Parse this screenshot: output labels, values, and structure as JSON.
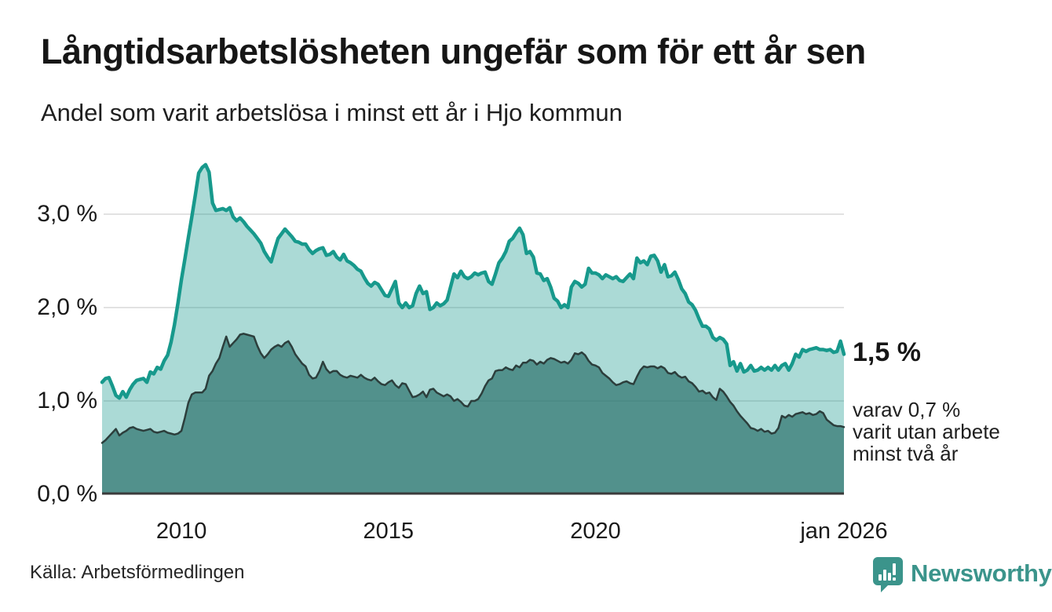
{
  "header": {
    "title": "Långtidsarbetslösheten ungefär som för ett år sen",
    "subtitle": "Andel som varit arbetslösa i minst ett år i Hjo kommun"
  },
  "chart_data": {
    "type": "area",
    "title": "Långtidsarbetslösheten ungefär som för ett år sen",
    "subtitle": "Andel som varit arbetslösa i minst ett år i Hjo kommun",
    "unit": "%",
    "frequency": "monthly",
    "x_start": "2008-02",
    "x_end": "2026-01",
    "ylim": [
      0,
      3.7
    ],
    "grid": "horizontal",
    "legend_position": "none",
    "y_gridlines": [
      1,
      2,
      3
    ],
    "y_ticks": [
      {
        "label": "0,0 %",
        "value": 0
      },
      {
        "label": "1,0 %",
        "value": 1
      },
      {
        "label": "2,0 %",
        "value": 2
      },
      {
        "label": "3,0 %",
        "value": 3
      }
    ],
    "x_ticks": [
      {
        "label": "2010",
        "month_index": 23
      },
      {
        "label": "2015",
        "month_index": 83
      },
      {
        "label": "2020",
        "month_index": 143
      },
      {
        "label": "jan 2026",
        "month_index": 215
      }
    ],
    "series": [
      {
        "name": "Arbetslösa minst ett år",
        "latest_value": 1.5,
        "color": "#17998c",
        "fill": "rgba(23,153,140,0.36)",
        "values": [
          1.2,
          1.24,
          1.25,
          1.16,
          1.06,
          1.03,
          1.1,
          1.04,
          1.12,
          1.18,
          1.22,
          1.23,
          1.24,
          1.2,
          1.31,
          1.29,
          1.36,
          1.34,
          1.43,
          1.49,
          1.63,
          1.82,
          2.05,
          2.3,
          2.52,
          2.75,
          2.97,
          3.2,
          3.44,
          3.5,
          3.53,
          3.45,
          3.12,
          3.04,
          3.05,
          3.06,
          3.04,
          3.07,
          2.97,
          2.93,
          2.96,
          2.92,
          2.87,
          2.83,
          2.79,
          2.74,
          2.69,
          2.6,
          2.54,
          2.49,
          2.62,
          2.74,
          2.79,
          2.84,
          2.8,
          2.76,
          2.71,
          2.7,
          2.68,
          2.68,
          2.62,
          2.58,
          2.61,
          2.63,
          2.64,
          2.56,
          2.57,
          2.6,
          2.54,
          2.51,
          2.57,
          2.5,
          2.48,
          2.45,
          2.41,
          2.39,
          2.32,
          2.26,
          2.23,
          2.27,
          2.25,
          2.19,
          2.13,
          2.12,
          2.2,
          2.28,
          2.05,
          2.0,
          2.05,
          2.0,
          2.02,
          2.15,
          2.23,
          2.15,
          2.17,
          1.98,
          2.0,
          2.05,
          2.02,
          2.04,
          2.08,
          2.22,
          2.36,
          2.32,
          2.39,
          2.33,
          2.31,
          2.33,
          2.37,
          2.35,
          2.37,
          2.38,
          2.28,
          2.25,
          2.36,
          2.48,
          2.53,
          2.6,
          2.71,
          2.74,
          2.8,
          2.85,
          2.78,
          2.58,
          2.6,
          2.54,
          2.37,
          2.36,
          2.29,
          2.31,
          2.22,
          2.1,
          2.07,
          2.0,
          2.03,
          2.0,
          2.22,
          2.28,
          2.26,
          2.22,
          2.25,
          2.42,
          2.37,
          2.37,
          2.35,
          2.31,
          2.35,
          2.33,
          2.31,
          2.33,
          2.29,
          2.28,
          2.32,
          2.36,
          2.31,
          2.53,
          2.48,
          2.5,
          2.46,
          2.55,
          2.56,
          2.5,
          2.38,
          2.46,
          2.33,
          2.34,
          2.38,
          2.3,
          2.2,
          2.15,
          2.06,
          2.03,
          1.97,
          1.88,
          1.8,
          1.8,
          1.77,
          1.68,
          1.65,
          1.68,
          1.66,
          1.61,
          1.38,
          1.42,
          1.32,
          1.4,
          1.31,
          1.33,
          1.38,
          1.32,
          1.33,
          1.36,
          1.33,
          1.36,
          1.33,
          1.38,
          1.33,
          1.38,
          1.4,
          1.33,
          1.4,
          1.5,
          1.47,
          1.55,
          1.53,
          1.55,
          1.56,
          1.57,
          1.55,
          1.55,
          1.54,
          1.55,
          1.52,
          1.53,
          1.64,
          1.5
        ]
      },
      {
        "name": "varav utan arbete minst två år",
        "latest_value": 0.7,
        "color": "#2c3e3c",
        "fill": "rgba(37,108,102,0.66)",
        "values": [
          0.55,
          0.58,
          0.62,
          0.66,
          0.7,
          0.63,
          0.66,
          0.68,
          0.71,
          0.72,
          0.7,
          0.69,
          0.68,
          0.69,
          0.7,
          0.67,
          0.66,
          0.67,
          0.68,
          0.66,
          0.65,
          0.64,
          0.65,
          0.68,
          0.82,
          0.98,
          1.07,
          1.09,
          1.09,
          1.09,
          1.13,
          1.27,
          1.32,
          1.4,
          1.46,
          1.58,
          1.69,
          1.58,
          1.62,
          1.66,
          1.71,
          1.72,
          1.71,
          1.7,
          1.69,
          1.59,
          1.51,
          1.46,
          1.5,
          1.55,
          1.58,
          1.6,
          1.58,
          1.62,
          1.64,
          1.58,
          1.5,
          1.45,
          1.4,
          1.37,
          1.28,
          1.24,
          1.25,
          1.32,
          1.42,
          1.34,
          1.3,
          1.32,
          1.32,
          1.28,
          1.26,
          1.25,
          1.27,
          1.26,
          1.25,
          1.28,
          1.25,
          1.23,
          1.22,
          1.25,
          1.21,
          1.18,
          1.17,
          1.2,
          1.22,
          1.17,
          1.14,
          1.19,
          1.18,
          1.11,
          1.04,
          1.05,
          1.07,
          1.1,
          1.04,
          1.12,
          1.13,
          1.09,
          1.07,
          1.05,
          1.07,
          1.05,
          1.0,
          1.02,
          0.99,
          0.95,
          0.94,
          1.0,
          1.0,
          1.02,
          1.08,
          1.16,
          1.22,
          1.24,
          1.32,
          1.33,
          1.33,
          1.36,
          1.34,
          1.33,
          1.38,
          1.36,
          1.41,
          1.41,
          1.44,
          1.43,
          1.39,
          1.42,
          1.4,
          1.44,
          1.46,
          1.45,
          1.43,
          1.41,
          1.42,
          1.4,
          1.44,
          1.51,
          1.5,
          1.52,
          1.49,
          1.43,
          1.39,
          1.38,
          1.36,
          1.3,
          1.27,
          1.24,
          1.2,
          1.17,
          1.18,
          1.2,
          1.21,
          1.19,
          1.18,
          1.26,
          1.33,
          1.37,
          1.36,
          1.37,
          1.37,
          1.35,
          1.37,
          1.35,
          1.3,
          1.29,
          1.31,
          1.27,
          1.25,
          1.26,
          1.21,
          1.19,
          1.15,
          1.1,
          1.11,
          1.08,
          1.09,
          1.04,
          1.01,
          1.13,
          1.1,
          1.05,
          0.99,
          0.95,
          0.89,
          0.84,
          0.8,
          0.76,
          0.71,
          0.7,
          0.68,
          0.7,
          0.67,
          0.68,
          0.65,
          0.66,
          0.71,
          0.84,
          0.82,
          0.85,
          0.83,
          0.86,
          0.87,
          0.88,
          0.86,
          0.87,
          0.85,
          0.86,
          0.89,
          0.87,
          0.8,
          0.77,
          0.74,
          0.73,
          0.73,
          0.72
        ]
      }
    ],
    "end_labels": {
      "primary": "1,5 %",
      "secondary_lines": [
        "varav 0,7 %",
        "varit utan arbete",
        "minst två år"
      ]
    }
  },
  "colors": {
    "line_primary": "#17998c",
    "fill_primary": "rgba(23,153,140,0.36)",
    "line_secondary": "#2c3e3c",
    "fill_secondary": "rgba(37,108,102,0.66)",
    "grid": "#e2e2e2",
    "baseline": "#3b3b3b",
    "brand_teal": "#3b948b",
    "text": "#1a1a1a"
  },
  "footer": {
    "source": "Källa: Arbetsförmedlingen",
    "brand": "Newsworthy"
  }
}
